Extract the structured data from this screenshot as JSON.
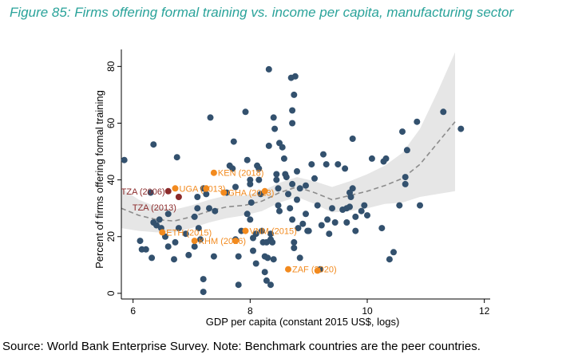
{
  "figure_title": "Figure 85: Firms offering formal training vs. income per capita, manufacturing sector",
  "source_note": "Source: World Bank Enterprise Survey. Note: Benchmark countries are the peer countries.",
  "colors": {
    "title": "#2aa39a",
    "peer_points": "#33516e",
    "benchmark_points": "#f28a1e",
    "benchmark_labels": "#f28a1e",
    "focus_points": "#8b2a2a",
    "focus_labels": "#8b2a2a",
    "trend_line": "#8c8c8c",
    "confidence_band": "#e6e6e6"
  },
  "chart_data": {
    "type": "scatter",
    "xlabel": "GDP per capita (constant 2015 US$, logs)",
    "ylabel": "Percent of firms offering formal training",
    "xlim": [
      5.8,
      12.1
    ],
    "ylim": [
      -2,
      86
    ],
    "x_ticks": [
      6,
      8,
      10,
      12
    ],
    "y_ticks": [
      0,
      20,
      40,
      60,
      80
    ],
    "grid": false,
    "legend": "none",
    "series": [
      {
        "points": [
          [
            5.85,
            47
          ],
          [
            6.3,
            35.5
          ],
          [
            6.35,
            52.5
          ],
          [
            6.12,
            18.5
          ],
          [
            6.15,
            15.5
          ],
          [
            6.22,
            15.5
          ],
          [
            6.32,
            12.5
          ],
          [
            6.35,
            25
          ],
          [
            6.4,
            24
          ],
          [
            6.45,
            26
          ],
          [
            6.48,
            23
          ],
          [
            6.55,
            20
          ],
          [
            6.6,
            16.5
          ],
          [
            6.6,
            28
          ],
          [
            6.7,
            12
          ],
          [
            6.72,
            18
          ],
          [
            6.75,
            48
          ],
          [
            6.78,
            23
          ],
          [
            6.9,
            21
          ],
          [
            6.95,
            13.5
          ],
          [
            7.05,
            27
          ],
          [
            7.05,
            16.5
          ],
          [
            7.1,
            30
          ],
          [
            7.1,
            34
          ],
          [
            7.12,
            23
          ],
          [
            7.15,
            19
          ],
          [
            7.2,
            37
          ],
          [
            7.2,
            5
          ],
          [
            7.2,
            0.5
          ],
          [
            7.25,
            35
          ],
          [
            7.3,
            30
          ],
          [
            7.32,
            62
          ],
          [
            7.38,
            13
          ],
          [
            7.4,
            29
          ],
          [
            7.6,
            35.5
          ],
          [
            7.65,
            45
          ],
          [
            7.7,
            44
          ],
          [
            7.72,
            53.5
          ],
          [
            7.75,
            37.5
          ],
          [
            7.75,
            19
          ],
          [
            7.8,
            13
          ],
          [
            7.8,
            3
          ],
          [
            7.85,
            22
          ],
          [
            7.92,
            64
          ],
          [
            7.95,
            28
          ],
          [
            7.95,
            47
          ],
          [
            8.0,
            40
          ],
          [
            8.0,
            38.5
          ],
          [
            8.0,
            26
          ],
          [
            8.02,
            32
          ],
          [
            8.05,
            19.5
          ],
          [
            8.05,
            15
          ],
          [
            8.1,
            21
          ],
          [
            8.1,
            10.5
          ],
          [
            8.12,
            45
          ],
          [
            8.15,
            44
          ],
          [
            8.15,
            40
          ],
          [
            8.18,
            35
          ],
          [
            8.2,
            22
          ],
          [
            8.22,
            18
          ],
          [
            8.25,
            13
          ],
          [
            8.25,
            7.5
          ],
          [
            8.28,
            18
          ],
          [
            8.28,
            4.5
          ],
          [
            8.3,
            12.5
          ],
          [
            8.32,
            79
          ],
          [
            8.32,
            52
          ],
          [
            8.35,
            21
          ],
          [
            8.35,
            19
          ],
          [
            8.35,
            3
          ],
          [
            8.38,
            18
          ],
          [
            8.4,
            12
          ],
          [
            8.4,
            62
          ],
          [
            8.42,
            58
          ],
          [
            8.45,
            42
          ],
          [
            8.45,
            40
          ],
          [
            8.48,
            37
          ],
          [
            8.48,
            31
          ],
          [
            8.5,
            53
          ],
          [
            8.5,
            29
          ],
          [
            8.55,
            51.5
          ],
          [
            8.58,
            47.5
          ],
          [
            8.6,
            42
          ],
          [
            8.62,
            41
          ],
          [
            8.65,
            35
          ],
          [
            8.68,
            30
          ],
          [
            8.7,
            76
          ],
          [
            8.72,
            64.5
          ],
          [
            8.72,
            60
          ],
          [
            8.72,
            38.5
          ],
          [
            8.72,
            26
          ],
          [
            8.75,
            70
          ],
          [
            8.77,
            76.5
          ],
          [
            8.75,
            18
          ],
          [
            8.75,
            16
          ],
          [
            8.8,
            43
          ],
          [
            8.8,
            33
          ],
          [
            8.82,
            23
          ],
          [
            8.85,
            12.5
          ],
          [
            8.85,
            37
          ],
          [
            8.9,
            24.5
          ],
          [
            8.95,
            38
          ],
          [
            8.95,
            28
          ],
          [
            8.98,
            22
          ],
          [
            9.0,
            22
          ],
          [
            9.05,
            45.5
          ],
          [
            9.1,
            40.5
          ],
          [
            9.15,
            31
          ],
          [
            9.2,
            8.5
          ],
          [
            9.22,
            24
          ],
          [
            9.25,
            49
          ],
          [
            9.3,
            45.5
          ],
          [
            9.32,
            26
          ],
          [
            9.35,
            21
          ],
          [
            9.4,
            30
          ],
          [
            9.45,
            25
          ],
          [
            9.5,
            45.5
          ],
          [
            9.58,
            29.5
          ],
          [
            9.62,
            44
          ],
          [
            9.65,
            30
          ],
          [
            9.65,
            25
          ],
          [
            9.7,
            30.5
          ],
          [
            9.7,
            35.5
          ],
          [
            9.75,
            37
          ],
          [
            9.72,
            34
          ],
          [
            9.75,
            54.5
          ],
          [
            9.8,
            27
          ],
          [
            9.8,
            22
          ],
          [
            9.9,
            29
          ],
          [
            9.95,
            31
          ],
          [
            10.0,
            27.5
          ],
          [
            10.08,
            47.5
          ],
          [
            10.25,
            23
          ],
          [
            10.28,
            46.5
          ],
          [
            10.32,
            47.5
          ],
          [
            10.38,
            12
          ],
          [
            10.45,
            14.5
          ],
          [
            10.55,
            31
          ],
          [
            10.6,
            57
          ],
          [
            10.68,
            50.5
          ],
          [
            10.65,
            41
          ],
          [
            10.65,
            38.5
          ],
          [
            10.85,
            60.5
          ],
          [
            10.9,
            31
          ],
          [
            11.3,
            64
          ],
          [
            11.6,
            58
          ]
        ]
      },
      {
        "points": [
          [
            6.5,
            21.5
          ],
          [
            6.72,
            37
          ],
          [
            7.05,
            18.5
          ],
          [
            7.25,
            37
          ],
          [
            7.38,
            42.5
          ],
          [
            7.55,
            35.5
          ],
          [
            7.75,
            18.5
          ],
          [
            7.92,
            22
          ],
          [
            8.25,
            36
          ],
          [
            8.65,
            8.5
          ],
          [
            9.15,
            8
          ]
        ]
      },
      {
        "points": [
          [
            6.6,
            36
          ],
          [
            6.78,
            34
          ]
        ]
      }
    ],
    "annotations": [
      {
        "text": "KEN (2018)",
        "x": 7.38,
        "y": 42.5,
        "series": "benchmark"
      },
      {
        "text": "UGA (2013)",
        "x": 6.72,
        "y": 37,
        "series": "benchmark"
      },
      {
        "text": "GHA (2013)",
        "x": 7.55,
        "y": 35.5,
        "series": "benchmark"
      },
      {
        "text": "ETH (2015)",
        "x": 6.5,
        "y": 21.5,
        "series": "benchmark"
      },
      {
        "text": "VNM (2015)",
        "x": 7.92,
        "y": 22,
        "series": "benchmark"
      },
      {
        "text": "KHM (2016)",
        "x": 7.05,
        "y": 18.5,
        "series": "benchmark"
      },
      {
        "text": "ZAF (2020)",
        "x": 8.65,
        "y": 8.5,
        "series": "benchmark"
      },
      {
        "text": "TZA (2006)",
        "x": 6.6,
        "y": 36,
        "series": "focus"
      },
      {
        "text": "TZA (2013)",
        "x": 6.78,
        "y": 34,
        "series": "focus"
      }
    ],
    "trend": {
      "x": [
        5.8,
        6.1,
        6.4,
        6.7,
        7.0,
        7.3,
        7.6,
        7.9,
        8.2,
        8.5,
        8.8,
        9.1,
        9.4,
        9.7,
        10.0,
        10.3,
        10.6,
        10.9,
        11.2,
        11.5
      ],
      "fit": [
        30,
        27.5,
        26,
        25.5,
        27,
        29,
        30.5,
        31,
        32.5,
        35.5,
        37.5,
        35.5,
        33,
        34.5,
        36,
        38,
        40.5,
        45.5,
        53,
        60.5
      ],
      "lower": [
        23,
        22,
        21.5,
        21.5,
        23,
        25,
        26.5,
        27.5,
        29,
        32,
        34,
        31.5,
        28.5,
        29,
        30,
        31.5,
        32,
        34,
        35,
        36
      ],
      "upper": [
        37,
        33,
        30.5,
        29.5,
        31,
        33,
        34.5,
        34.5,
        36,
        39,
        41,
        39.5,
        37.5,
        39.5,
        42,
        45,
        49.5,
        58,
        71,
        85
      ]
    }
  }
}
